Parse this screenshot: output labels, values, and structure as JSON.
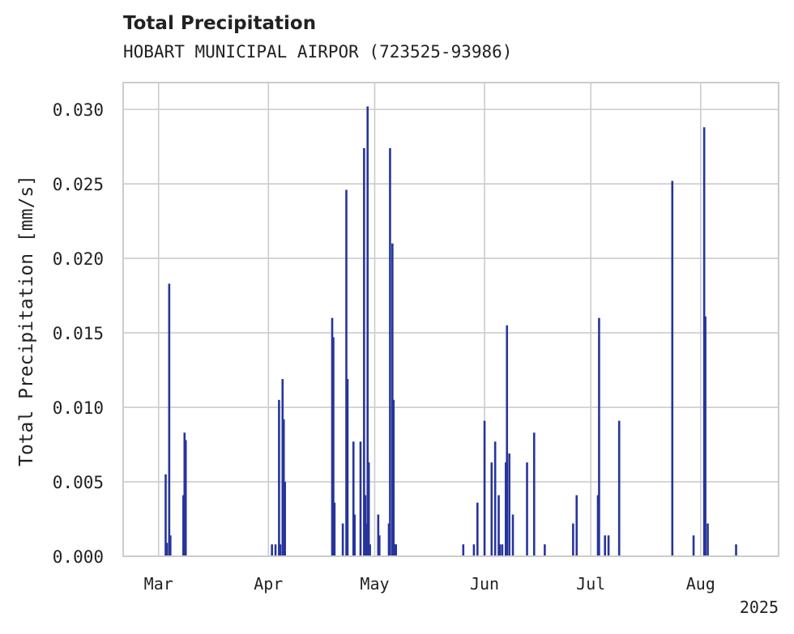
{
  "chart_data": {
    "type": "bar",
    "title": "Total Precipitation",
    "subtitle": "HOBART MUNICIPAL AIRPOR (723525-93986)",
    "ylabel": "Total Precipitation [mm/s]",
    "xlabel": "",
    "year_label": "2025",
    "ylim": [
      0,
      0.0318
    ],
    "yticks": [
      "0.000",
      "0.005",
      "0.010",
      "0.015",
      "0.020",
      "0.025",
      "0.030"
    ],
    "xlim": [
      "2025-02-19",
      "2025-08-23"
    ],
    "xticks": [
      {
        "label": "Mar",
        "date": "2025-03-01"
      },
      {
        "label": "Apr",
        "date": "2025-04-01"
      },
      {
        "label": "May",
        "date": "2025-05-01"
      },
      {
        "label": "Jun",
        "date": "2025-06-01"
      },
      {
        "label": "Jul",
        "date": "2025-07-01"
      },
      {
        "label": "Aug",
        "date": "2025-08-01"
      }
    ],
    "grid": true,
    "bar_color": "#27349b",
    "x": [
      "2025-03-03",
      "2025-03-03",
      "2025-03-04",
      "2025-03-04",
      "2025-03-08",
      "2025-03-08",
      "2025-03-08",
      "2025-04-02",
      "2025-04-03",
      "2025-04-04",
      "2025-04-04",
      "2025-04-05",
      "2025-04-05",
      "2025-04-05",
      "2025-04-19",
      "2025-04-19",
      "2025-04-19",
      "2025-04-22",
      "2025-04-23",
      "2025-04-23",
      "2025-04-25",
      "2025-04-25",
      "2025-04-27",
      "2025-04-28",
      "2025-04-28",
      "2025-04-28",
      "2025-04-29",
      "2025-04-29",
      "2025-04-29",
      "2025-05-02",
      "2025-05-02",
      "2025-05-05",
      "2025-05-05",
      "2025-05-06",
      "2025-05-06",
      "2025-05-06",
      "2025-05-07",
      "2025-05-26",
      "2025-05-29",
      "2025-05-30",
      "2025-06-01",
      "2025-06-03",
      "2025-06-04",
      "2025-06-05",
      "2025-06-05",
      "2025-06-06",
      "2025-06-07",
      "2025-06-07",
      "2025-06-08",
      "2025-06-09",
      "2025-06-13",
      "2025-06-15",
      "2025-06-18",
      "2025-06-26",
      "2025-06-27",
      "2025-07-03",
      "2025-07-03",
      "2025-07-05",
      "2025-07-06",
      "2025-07-09",
      "2025-07-24",
      "2025-07-30",
      "2025-08-02",
      "2025-08-02",
      "2025-08-03",
      "2025-08-11"
    ],
    "values": [
      0.0055,
      0.0009,
      0.0183,
      0.0014,
      0.0041,
      0.0083,
      0.0078,
      0.0008,
      0.0008,
      0.0105,
      0.0008,
      0.0119,
      0.0092,
      0.005,
      0.016,
      0.0147,
      0.0036,
      0.0022,
      0.0246,
      0.0119,
      0.0077,
      0.0028,
      0.0077,
      0.0274,
      0.0041,
      0.0022,
      0.0302,
      0.0063,
      0.0008,
      0.0028,
      0.0014,
      0.0022,
      0.0274,
      0.021,
      0.0105,
      0.0008,
      0.0008,
      0.0008,
      0.0008,
      0.0036,
      0.0091,
      0.0063,
      0.0077,
      0.0041,
      0.0008,
      0.0008,
      0.0063,
      0.0155,
      0.0069,
      0.0028,
      0.0063,
      0.0083,
      0.0008,
      0.0022,
      0.0041,
      0.0041,
      0.016,
      0.0014,
      0.0014,
      0.0091,
      0.0252,
      0.0014,
      0.0288,
      0.0161,
      0.0022,
      0.0008
    ]
  }
}
